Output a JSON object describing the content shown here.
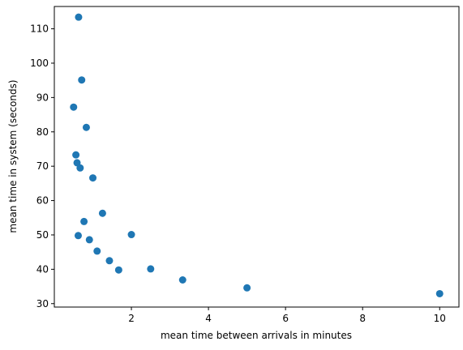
{
  "chart_data": {
    "type": "scatter",
    "title": "",
    "xlabel": "mean time between arrivals in minutes",
    "ylabel": "mean time in system (seconds)",
    "xlim": [
      0.0,
      10.5
    ],
    "ylim": [
      29.0,
      116.5
    ],
    "xticks": [
      2,
      4,
      6,
      8,
      10
    ],
    "yticks": [
      30,
      40,
      50,
      60,
      70,
      80,
      90,
      100,
      110
    ],
    "grid": false,
    "marker_color": "#1f77b4",
    "points": [
      {
        "x": 0.63,
        "y": 113.4
      },
      {
        "x": 0.71,
        "y": 95.1
      },
      {
        "x": 0.5,
        "y": 87.2
      },
      {
        "x": 0.83,
        "y": 81.3
      },
      {
        "x": 0.56,
        "y": 73.3
      },
      {
        "x": 0.59,
        "y": 71.0
      },
      {
        "x": 0.67,
        "y": 69.5
      },
      {
        "x": 1.0,
        "y": 66.6
      },
      {
        "x": 1.25,
        "y": 56.3
      },
      {
        "x": 0.77,
        "y": 53.9
      },
      {
        "x": 2.0,
        "y": 50.1
      },
      {
        "x": 0.62,
        "y": 49.8
      },
      {
        "x": 0.91,
        "y": 48.6
      },
      {
        "x": 1.11,
        "y": 45.3
      },
      {
        "x": 1.43,
        "y": 42.5
      },
      {
        "x": 1.67,
        "y": 39.8
      },
      {
        "x": 2.5,
        "y": 40.1
      },
      {
        "x": 3.33,
        "y": 36.9
      },
      {
        "x": 5.0,
        "y": 34.6
      },
      {
        "x": 10.0,
        "y": 32.9
      }
    ]
  }
}
